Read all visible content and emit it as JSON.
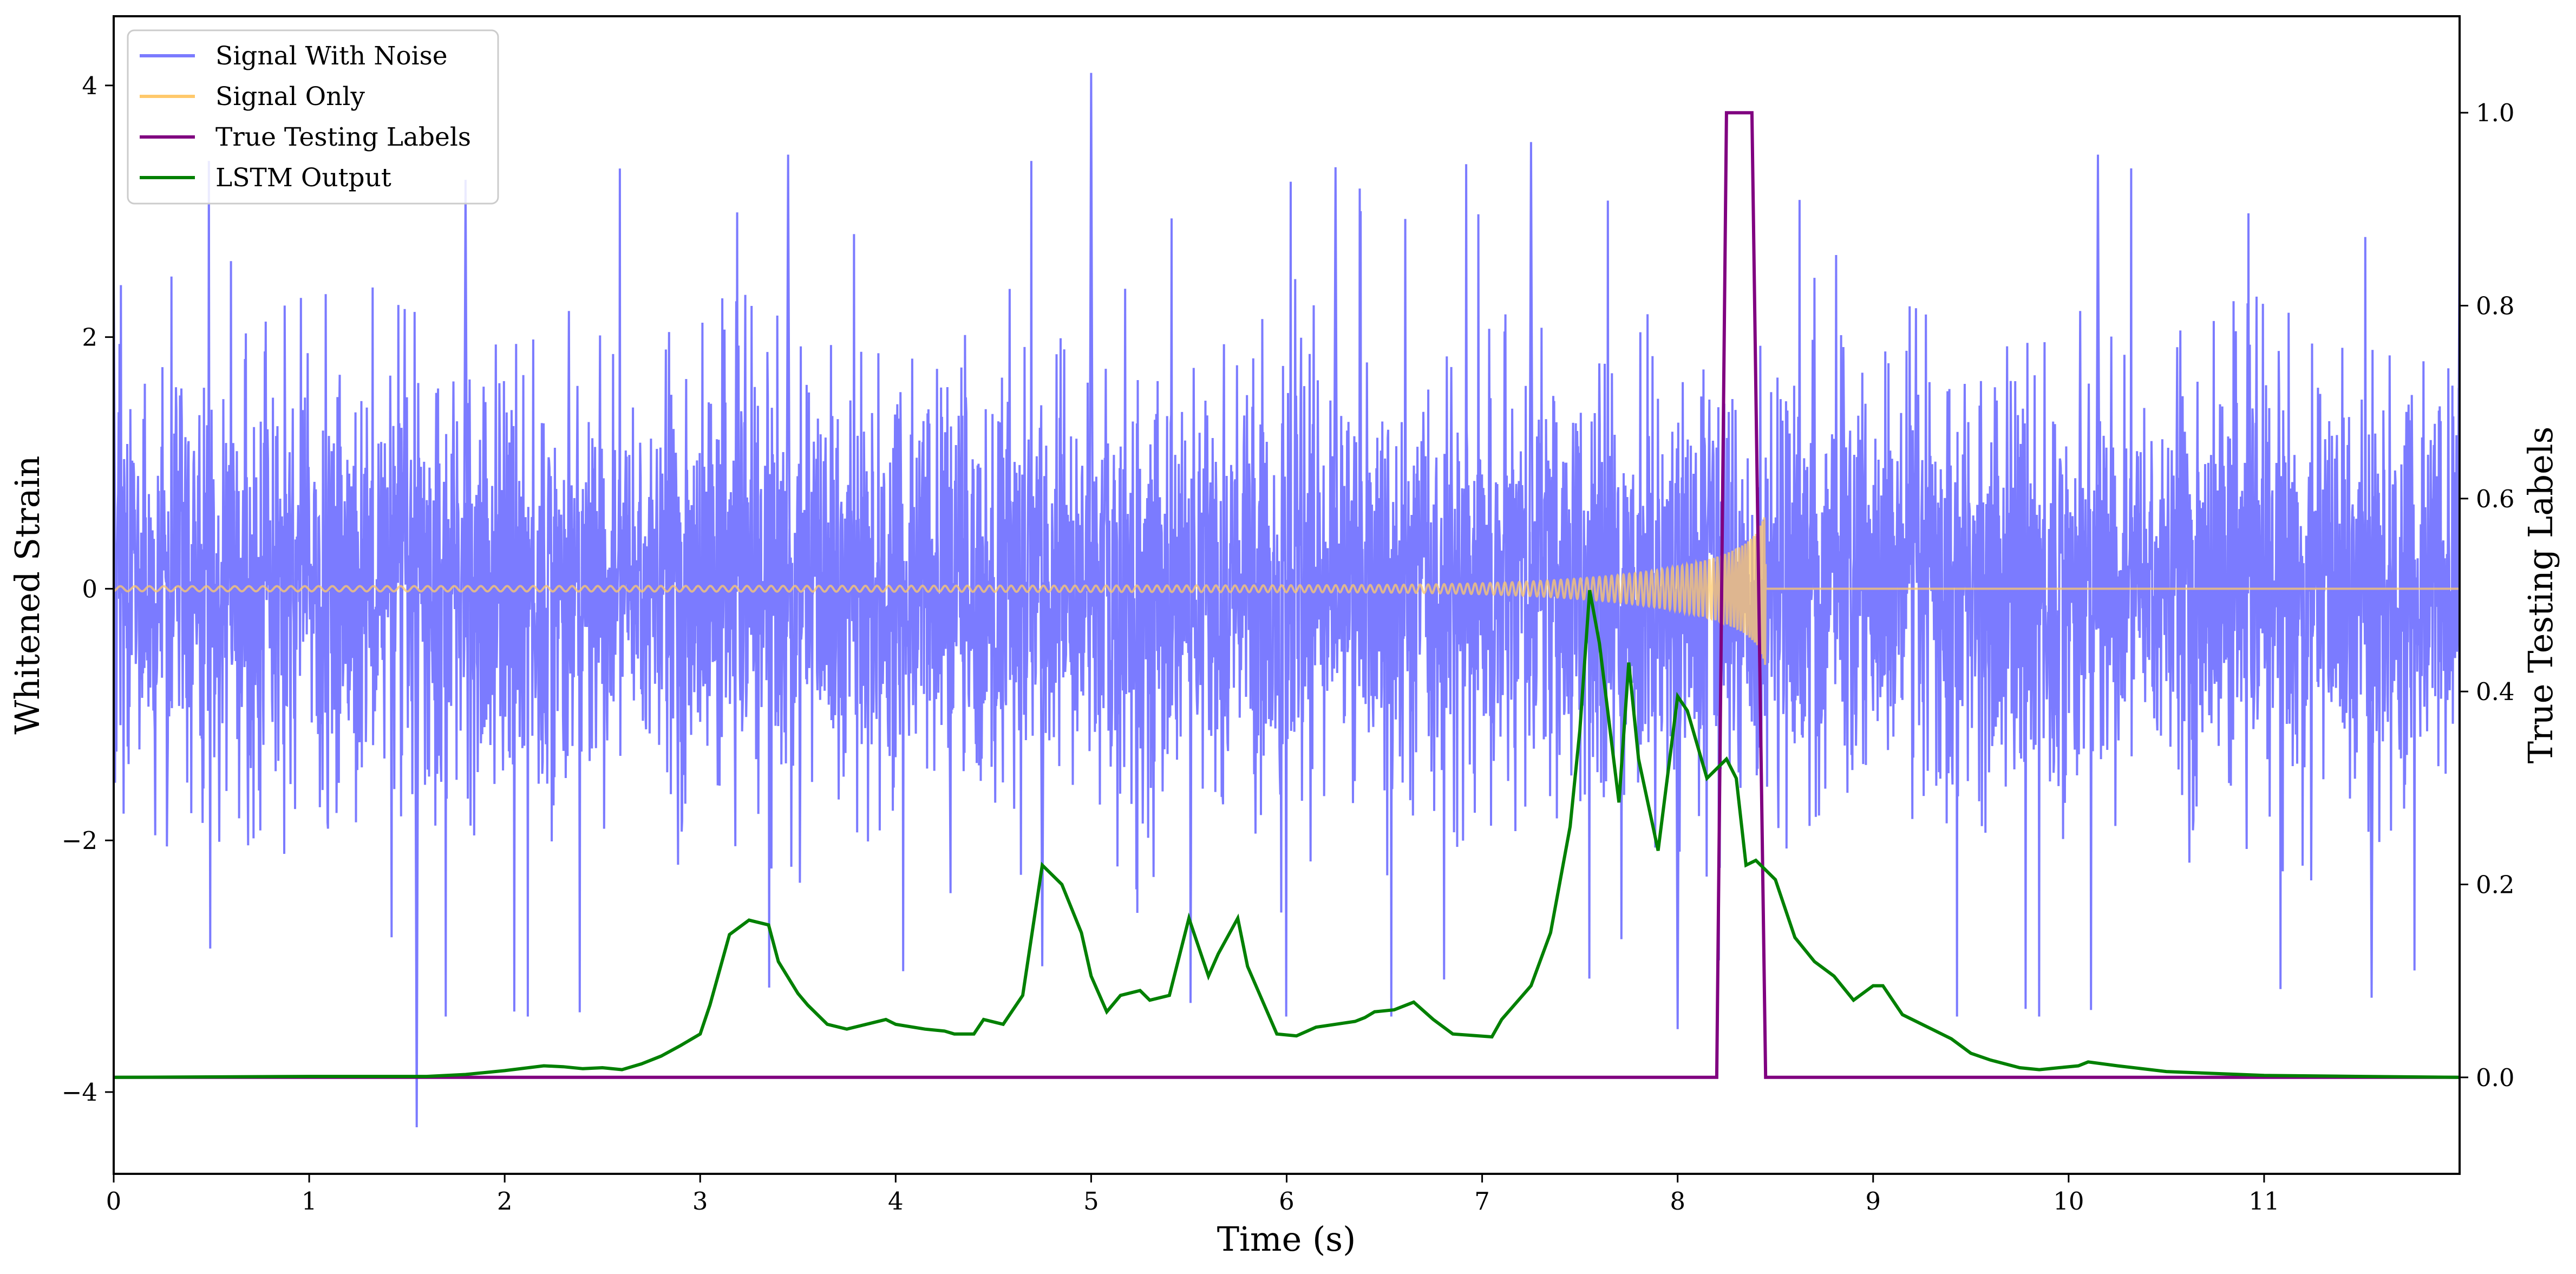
{
  "colors": {
    "noise": "#7b7bff",
    "signal": "#ffc96b",
    "labels": "#800080",
    "lstm": "#008000",
    "axis": "#000000"
  },
  "chart_data": {
    "type": "line",
    "xlabel": "Time (s)",
    "ylabel": "Whitened Strain",
    "y2label": "True Testing Labels",
    "xlim": [
      0,
      12
    ],
    "ylim": [
      -4.65,
      4.55
    ],
    "y2lim": [
      -0.1,
      1.1
    ],
    "xticks": [
      0,
      1,
      2,
      3,
      4,
      5,
      6,
      7,
      8,
      9,
      10,
      11
    ],
    "yticks": [
      -4,
      -2,
      0,
      2,
      4
    ],
    "y2ticks": [
      0.0,
      0.2,
      0.4,
      0.6,
      0.8,
      1.0
    ],
    "grid": false,
    "legend_position": "upper-left",
    "legend": [
      "Signal With Noise",
      "Signal Only",
      "True Testing Labels",
      "LSTM Output"
    ],
    "series": [
      {
        "name": "Signal With Noise",
        "axis": "left",
        "description_values": "dense noisy strain, roughly ±2 with spikes",
        "notable_points": [
          [
            0.0,
            2.55
          ],
          [
            1.55,
            -4.28
          ],
          [
            1.8,
            3.25
          ],
          [
            3.45,
            3.45
          ],
          [
            4.75,
            -3.0
          ],
          [
            5.0,
            4.1
          ],
          [
            6.25,
            3.35
          ],
          [
            7.25,
            3.55
          ],
          [
            8.0,
            -3.5
          ],
          [
            10.15,
            3.45
          ],
          [
            11.55,
            -3.25
          ],
          [
            12.0,
            3.05
          ]
        ]
      },
      {
        "name": "Signal Only",
        "axis": "left",
        "chirp_start": 0.0,
        "chirp_end": 8.45,
        "amplitude_start": 0.02,
        "amplitude_peak": 0.95
      },
      {
        "name": "True Testing Labels",
        "axis": "right",
        "x": [
          0,
          8.2,
          8.25,
          8.38,
          8.45,
          12
        ],
        "y": [
          0,
          0,
          1,
          1,
          0,
          0
        ]
      },
      {
        "name": "LSTM Output",
        "axis": "right",
        "x": [
          0,
          1.0,
          1.6,
          1.8,
          2.0,
          2.2,
          2.3,
          2.4,
          2.5,
          2.6,
          2.7,
          2.8,
          2.9,
          3.0,
          3.05,
          3.15,
          3.25,
          3.35,
          3.4,
          3.5,
          3.55,
          3.65,
          3.75,
          3.85,
          3.95,
          4.0,
          4.15,
          4.25,
          4.3,
          4.4,
          4.45,
          4.55,
          4.65,
          4.75,
          4.85,
          4.95,
          5.0,
          5.08,
          5.15,
          5.25,
          5.3,
          5.4,
          5.5,
          5.6,
          5.65,
          5.75,
          5.8,
          5.95,
          6.05,
          6.15,
          6.25,
          6.35,
          6.4,
          6.45,
          6.55,
          6.65,
          6.75,
          6.85,
          7.05,
          7.1,
          7.25,
          7.35,
          7.45,
          7.5,
          7.55,
          7.6,
          7.7,
          7.75,
          7.8,
          7.9,
          8.0,
          8.05,
          8.15,
          8.25,
          8.3,
          8.35,
          8.4,
          8.5,
          8.6,
          8.7,
          8.8,
          8.9,
          9.0,
          9.05,
          9.15,
          9.3,
          9.4,
          9.5,
          9.6,
          9.75,
          9.85,
          9.95,
          10.05,
          10.1,
          10.25,
          10.5,
          11.0,
          11.5,
          12.0
        ],
        "y": [
          0,
          0.001,
          0.001,
          0.003,
          0.007,
          0.012,
          0.011,
          0.009,
          0.01,
          0.008,
          0.014,
          0.022,
          0.033,
          0.045,
          0.075,
          0.148,
          0.163,
          0.158,
          0.12,
          0.087,
          0.075,
          0.055,
          0.05,
          0.055,
          0.06,
          0.055,
          0.05,
          0.048,
          0.045,
          0.045,
          0.06,
          0.055,
          0.085,
          0.22,
          0.2,
          0.15,
          0.105,
          0.068,
          0.085,
          0.09,
          0.08,
          0.085,
          0.165,
          0.105,
          0.128,
          0.165,
          0.115,
          0.045,
          0.043,
          0.052,
          0.055,
          0.058,
          0.062,
          0.068,
          0.07,
          0.078,
          0.06,
          0.045,
          0.042,
          0.06,
          0.095,
          0.15,
          0.26,
          0.36,
          0.505,
          0.45,
          0.285,
          0.43,
          0.33,
          0.235,
          0.395,
          0.38,
          0.31,
          0.33,
          0.31,
          0.22,
          0.225,
          0.205,
          0.145,
          0.12,
          0.105,
          0.08,
          0.095,
          0.095,
          0.065,
          0.05,
          0.04,
          0.025,
          0.018,
          0.01,
          0.008,
          0.01,
          0.012,
          0.016,
          0.012,
          0.006,
          0.002,
          0.001,
          0.0
        ]
      }
    ]
  }
}
